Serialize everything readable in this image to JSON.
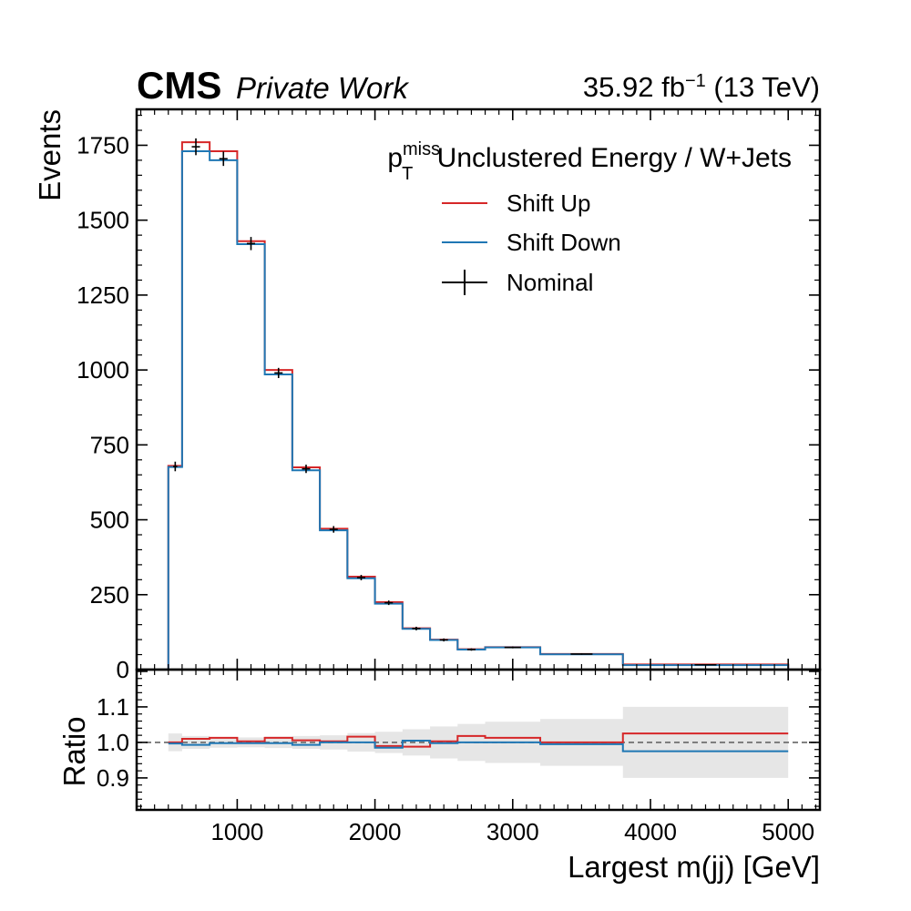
{
  "header": {
    "experiment": "CMS",
    "tag": "Private Work",
    "lumi_value": "35.92 fb",
    "lumi_exp": "−1",
    "lumi_energy": " (13 TeV)"
  },
  "chart_data": {
    "type": "step",
    "title_base": "p",
    "title_sup": "miss",
    "title_sub": "T",
    "title_rest": " Unclustered Energy / W+Jets",
    "xlabel": "Largest m(jj) [GeV]",
    "ylabel": "Events",
    "ratio_ylabel": "Ratio",
    "xlim": [
      270,
      5230
    ],
    "ylim": [
      0,
      1870
    ],
    "ratio_ylim": [
      0.81,
      1.205
    ],
    "x_ticks": [
      1000,
      2000,
      3000,
      4000,
      5000
    ],
    "y_ticks": [
      0,
      250,
      500,
      750,
      1000,
      1250,
      1500,
      1750
    ],
    "ratio_y_ticks": [
      "0.9",
      "1.0",
      "1.1"
    ],
    "bin_edges": [
      500,
      600,
      800,
      1000,
      1200,
      1400,
      1600,
      1800,
      2000,
      2200,
      2400,
      2600,
      2800,
      3200,
      3800,
      5000
    ],
    "legend_position": "top-right",
    "colors": {
      "up": "#d62728",
      "down": "#1f77b4",
      "nominal": "#000000",
      "band": "#e6e6e6",
      "unity": "#666666"
    },
    "series": [
      {
        "name": "Shift Up",
        "values": [
          680,
          1760,
          1730,
          1430,
          1000,
          675,
          470,
          310,
          225,
          138,
          100,
          68,
          75,
          52,
          17
        ]
      },
      {
        "name": "Shift Down",
        "values": [
          676,
          1730,
          1700,
          1420,
          985,
          665,
          465,
          305,
          220,
          136,
          99,
          67,
          74,
          51,
          15
        ]
      },
      {
        "name": "Nominal",
        "values": [
          678,
          1745,
          1705,
          1422,
          990,
          670,
          468,
          307,
          223,
          137,
          99,
          67,
          74,
          52,
          16
        ],
        "errors": [
          16,
          28,
          24,
          22,
          17,
          14,
          11,
          9,
          7.5,
          6,
          5,
          4,
          3,
          2.5,
          1.5
        ]
      }
    ],
    "ratio": {
      "up": [
        1.0,
        1.01,
        1.013,
        1.003,
        1.013,
        1.006,
        1.003,
        1.016,
        0.99,
        0.988,
        1.003,
        1.018,
        1.013,
        1.0,
        1.025
      ],
      "down": [
        0.997,
        0.993,
        0.998,
        0.998,
        0.998,
        0.993,
        1.0,
        1.0,
        0.985,
        1.005,
        0.998,
        1.0,
        1.0,
        0.995,
        0.975
      ],
      "band_half_width": [
        0.025,
        0.018,
        0.015,
        0.014,
        0.016,
        0.018,
        0.02,
        0.026,
        0.03,
        0.037,
        0.045,
        0.052,
        0.058,
        0.066,
        0.1
      ]
    }
  }
}
